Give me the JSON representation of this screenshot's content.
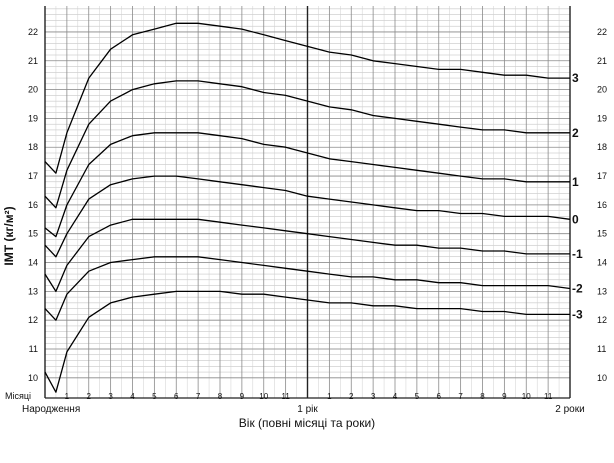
{
  "chart_data": {
    "type": "line",
    "ylabel": "ІМТ (кг/м²)",
    "xlabel": "Вік (повні місяці та роки)",
    "ylim": [
      9.3,
      22.9
    ],
    "xlim": [
      0,
      24
    ],
    "y_ticks": [
      "10",
      "11",
      "12",
      "13",
      "14",
      "15",
      "16",
      "17",
      "18",
      "19",
      "20",
      "21",
      "22"
    ],
    "x_ticks": [
      "1",
      "2",
      "3",
      "4",
      "5",
      "6",
      "7",
      "8",
      "9",
      "10",
      "11",
      "1 рік",
      "1",
      "2",
      "3",
      "4",
      "5",
      "6",
      "7",
      "8",
      "9",
      "10",
      "11",
      "2 роки"
    ],
    "x_row_label": "Місяці",
    "x_start_label": "Народження",
    "grid": true,
    "series": [
      {
        "name": "3",
        "x": [
          0,
          0.5,
          1,
          2,
          3,
          4,
          5,
          6,
          7,
          8,
          9,
          10,
          11,
          12,
          13,
          14,
          15,
          16,
          17,
          18,
          19,
          20,
          21,
          22,
          23,
          24
        ],
        "values": [
          17.5,
          17.1,
          18.5,
          20.4,
          21.4,
          21.9,
          22.1,
          22.3,
          22.3,
          22.2,
          22.1,
          21.9,
          21.7,
          21.5,
          21.3,
          21.2,
          21.0,
          20.9,
          20.8,
          20.7,
          20.7,
          20.6,
          20.5,
          20.5,
          20.4,
          20.4
        ]
      },
      {
        "name": "2",
        "x": [
          0,
          0.5,
          1,
          2,
          3,
          4,
          5,
          6,
          7,
          8,
          9,
          10,
          11,
          12,
          13,
          14,
          15,
          16,
          17,
          18,
          19,
          20,
          21,
          22,
          23,
          24
        ],
        "values": [
          16.3,
          15.9,
          17.2,
          18.8,
          19.6,
          20.0,
          20.2,
          20.3,
          20.3,
          20.2,
          20.1,
          19.9,
          19.8,
          19.6,
          19.4,
          19.3,
          19.1,
          19.0,
          18.9,
          18.8,
          18.7,
          18.6,
          18.6,
          18.5,
          18.5,
          18.5
        ]
      },
      {
        "name": "1",
        "x": [
          0,
          0.5,
          1,
          2,
          3,
          4,
          5,
          6,
          7,
          8,
          9,
          10,
          11,
          12,
          13,
          14,
          15,
          16,
          17,
          18,
          19,
          20,
          21,
          22,
          23,
          24
        ],
        "values": [
          15.2,
          14.9,
          16.0,
          17.4,
          18.1,
          18.4,
          18.5,
          18.5,
          18.5,
          18.4,
          18.3,
          18.1,
          18.0,
          17.8,
          17.6,
          17.5,
          17.4,
          17.3,
          17.2,
          17.1,
          17.0,
          16.9,
          16.9,
          16.8,
          16.8,
          16.8
        ]
      },
      {
        "name": "0",
        "x": [
          0,
          0.5,
          1,
          2,
          3,
          4,
          5,
          6,
          7,
          8,
          9,
          10,
          11,
          12,
          13,
          14,
          15,
          16,
          17,
          18,
          19,
          20,
          21,
          22,
          23,
          24
        ],
        "values": [
          14.6,
          14.2,
          15.0,
          16.2,
          16.7,
          16.9,
          17.0,
          17.0,
          16.9,
          16.8,
          16.7,
          16.6,
          16.5,
          16.3,
          16.2,
          16.1,
          16.0,
          15.9,
          15.8,
          15.8,
          15.7,
          15.7,
          15.6,
          15.6,
          15.6,
          15.5
        ]
      },
      {
        "name": "-1",
        "x": [
          0,
          0.5,
          1,
          2,
          3,
          4,
          5,
          6,
          7,
          8,
          9,
          10,
          11,
          12,
          13,
          14,
          15,
          16,
          17,
          18,
          19,
          20,
          21,
          22,
          23,
          24
        ],
        "values": [
          13.6,
          13.0,
          13.9,
          14.9,
          15.3,
          15.5,
          15.5,
          15.5,
          15.5,
          15.4,
          15.3,
          15.2,
          15.1,
          15.0,
          14.9,
          14.8,
          14.7,
          14.6,
          14.6,
          14.5,
          14.5,
          14.4,
          14.4,
          14.3,
          14.3,
          14.3
        ]
      },
      {
        "name": "-2",
        "x": [
          0,
          0.5,
          1,
          2,
          3,
          4,
          5,
          6,
          7,
          8,
          9,
          10,
          11,
          12,
          13,
          14,
          15,
          16,
          17,
          18,
          19,
          20,
          21,
          22,
          23,
          24
        ],
        "values": [
          12.4,
          12.0,
          12.9,
          13.7,
          14.0,
          14.1,
          14.2,
          14.2,
          14.2,
          14.1,
          14.0,
          13.9,
          13.8,
          13.7,
          13.6,
          13.5,
          13.5,
          13.4,
          13.4,
          13.3,
          13.3,
          13.2,
          13.2,
          13.2,
          13.2,
          13.1
        ]
      },
      {
        "name": "-3",
        "x": [
          0,
          0.5,
          1,
          2,
          3,
          4,
          5,
          6,
          7,
          8,
          9,
          10,
          11,
          12,
          13,
          14,
          15,
          16,
          17,
          18,
          19,
          20,
          21,
          22,
          23,
          24
        ],
        "values": [
          10.2,
          9.5,
          10.9,
          12.1,
          12.6,
          12.8,
          12.9,
          13.0,
          13.0,
          13.0,
          12.9,
          12.9,
          12.8,
          12.7,
          12.6,
          12.6,
          12.5,
          12.5,
          12.4,
          12.4,
          12.4,
          12.3,
          12.3,
          12.2,
          12.2,
          12.2
        ]
      }
    ]
  }
}
